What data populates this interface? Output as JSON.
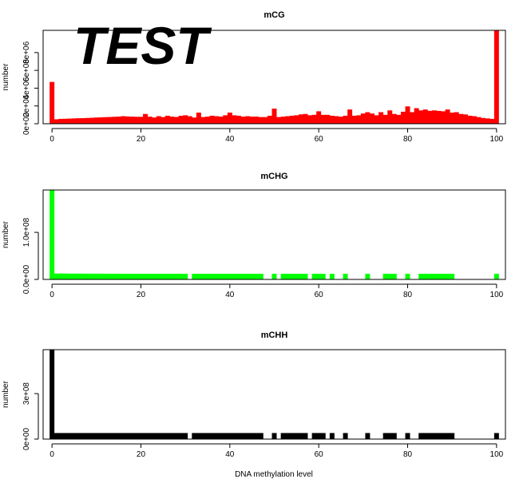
{
  "watermark": "TEST",
  "xlabel": "DNA methylation level",
  "colors": {
    "mCG": "#ff0000",
    "mCHG": "#00ff00",
    "mCHH": "#000000",
    "watermark": "#ec1c24"
  },
  "chart_data": [
    {
      "type": "bar",
      "title": "mCG",
      "ylabel": "number",
      "xlim": [
        -2,
        102
      ],
      "ylim": [
        0,
        10500000
      ],
      "x_ticks": [
        0,
        20,
        40,
        60,
        80,
        100
      ],
      "x_tick_labels": [
        "0",
        "20",
        "40",
        "60",
        "80",
        "100"
      ],
      "y_ticks": [
        0,
        2000000,
        4000000,
        6000000,
        8000000
      ],
      "y_tick_labels": [
        "0e+00",
        "2e+06",
        "4e+06",
        "6e+06",
        "8e+06"
      ],
      "x": [
        0,
        1,
        2,
        3,
        4,
        5,
        6,
        7,
        8,
        9,
        10,
        11,
        12,
        13,
        14,
        15,
        16,
        17,
        18,
        19,
        20,
        21,
        22,
        23,
        24,
        25,
        26,
        27,
        28,
        29,
        30,
        31,
        32,
        33,
        34,
        35,
        36,
        37,
        38,
        39,
        40,
        41,
        42,
        43,
        44,
        45,
        46,
        47,
        48,
        49,
        50,
        51,
        52,
        53,
        54,
        55,
        56,
        57,
        58,
        59,
        60,
        61,
        62,
        63,
        64,
        65,
        66,
        67,
        68,
        69,
        70,
        71,
        72,
        73,
        74,
        75,
        76,
        77,
        78,
        79,
        80,
        81,
        82,
        83,
        84,
        85,
        86,
        87,
        88,
        89,
        90,
        91,
        92,
        93,
        94,
        95,
        96,
        97,
        98,
        99,
        100
      ],
      "values": [
        4700000,
        500000,
        550000,
        560000,
        580000,
        600000,
        620000,
        630000,
        650000,
        670000,
        700000,
        720000,
        740000,
        760000,
        780000,
        800000,
        850000,
        820000,
        800000,
        780000,
        780000,
        1100000,
        800000,
        700000,
        850000,
        750000,
        900000,
        800000,
        760000,
        900000,
        950000,
        850000,
        700000,
        1250000,
        750000,
        800000,
        900000,
        850000,
        800000,
        950000,
        1250000,
        950000,
        900000,
        800000,
        850000,
        800000,
        800000,
        750000,
        750000,
        900000,
        1700000,
        750000,
        800000,
        850000,
        900000,
        950000,
        1050000,
        1100000,
        950000,
        1000000,
        1400000,
        1000000,
        1000000,
        900000,
        850000,
        800000,
        900000,
        1600000,
        900000,
        950000,
        1150000,
        1300000,
        1150000,
        950000,
        1300000,
        1000000,
        1500000,
        1100000,
        1000000,
        1350000,
        1950000,
        1300000,
        1750000,
        1500000,
        1600000,
        1450000,
        1500000,
        1450000,
        1400000,
        1600000,
        1250000,
        1300000,
        1100000,
        1050000,
        900000,
        850000,
        750000,
        650000,
        600000,
        550000,
        10500000
      ]
    },
    {
      "type": "bar",
      "title": "mCHG",
      "ylabel": "number",
      "xlim": [
        -2,
        102
      ],
      "ylim": [
        0,
        190000000
      ],
      "x_ticks": [
        0,
        20,
        40,
        60,
        80,
        100
      ],
      "x_tick_labels": [
        "0",
        "20",
        "40",
        "60",
        "80",
        "100"
      ],
      "y_ticks": [
        0,
        100000000
      ],
      "y_tick_labels": [
        "0.0e+00",
        "1.0e+08"
      ],
      "x": [
        0,
        1,
        2,
        3,
        4,
        5,
        6,
        7,
        8,
        9,
        10,
        11,
        12,
        13,
        14,
        15,
        16,
        17,
        18,
        19,
        20,
        21,
        22,
        23,
        24,
        25,
        26,
        27,
        28,
        29,
        30,
        32,
        33,
        34,
        35,
        36,
        37,
        38,
        39,
        40,
        41,
        42,
        43,
        44,
        45,
        46,
        47,
        50,
        52,
        53,
        54,
        55,
        56,
        57,
        59,
        60,
        61,
        63,
        66,
        71,
        75,
        76,
        77,
        80,
        83,
        84,
        85,
        86,
        87,
        88,
        89,
        90,
        100
      ],
      "values": [
        190000000,
        12500000,
        12500000,
        12500000,
        12300000,
        12300000,
        12300000,
        12300000,
        12200000,
        12200000,
        12200000,
        12200000,
        12100000,
        12100000,
        12100000,
        12100000,
        12000000,
        12000000,
        12000000,
        12000000,
        12000000,
        12000000,
        12000000,
        12000000,
        12000000,
        12000000,
        12000000,
        12000000,
        12000000,
        12000000,
        12000000,
        12000000,
        12000000,
        12000000,
        12000000,
        12000000,
        12000000,
        12000000,
        12000000,
        12000000,
        12000000,
        12000000,
        12000000,
        12000000,
        12000000,
        12000000,
        12000000,
        12000000,
        12000000,
        12000000,
        12000000,
        12000000,
        12000000,
        12000000,
        12000000,
        12000000,
        12000000,
        12000000,
        12000000,
        12000000,
        12000000,
        12000000,
        12000000,
        12000000,
        12000000,
        12000000,
        12000000,
        12000000,
        12000000,
        12000000,
        12000000,
        12000000,
        12000000
      ]
    },
    {
      "type": "bar",
      "title": "mCHH",
      "ylabel": "number",
      "xlim": [
        -2,
        102
      ],
      "ylim": [
        0,
        590000000
      ],
      "x_ticks": [
        0,
        20,
        40,
        60,
        80,
        100
      ],
      "x_tick_labels": [
        "0",
        "20",
        "40",
        "60",
        "80",
        "100"
      ],
      "y_ticks": [
        0,
        300000000
      ],
      "y_tick_labels": [
        "0e+00",
        "3e+08"
      ],
      "x": [
        0,
        1,
        2,
        3,
        4,
        5,
        6,
        7,
        8,
        9,
        10,
        11,
        12,
        13,
        14,
        15,
        16,
        17,
        18,
        19,
        20,
        21,
        22,
        23,
        24,
        25,
        26,
        27,
        28,
        29,
        30,
        32,
        33,
        34,
        35,
        36,
        37,
        38,
        39,
        40,
        41,
        42,
        43,
        44,
        45,
        46,
        47,
        50,
        52,
        53,
        54,
        55,
        56,
        57,
        59,
        60,
        61,
        63,
        66,
        71,
        75,
        76,
        77,
        80,
        83,
        84,
        85,
        86,
        87,
        88,
        89,
        90,
        100
      ],
      "values": [
        590000000,
        40000000,
        40000000,
        40000000,
        40000000,
        40000000,
        40000000,
        40000000,
        40000000,
        40000000,
        40000000,
        40000000,
        40000000,
        40000000,
        40000000,
        40000000,
        40000000,
        40000000,
        40000000,
        40000000,
        40000000,
        40000000,
        40000000,
        40000000,
        40000000,
        40000000,
        40000000,
        40000000,
        40000000,
        40000000,
        40000000,
        40000000,
        40000000,
        40000000,
        40000000,
        40000000,
        40000000,
        40000000,
        40000000,
        40000000,
        40000000,
        40000000,
        40000000,
        40000000,
        40000000,
        40000000,
        40000000,
        40000000,
        40000000,
        40000000,
        40000000,
        40000000,
        40000000,
        40000000,
        40000000,
        40000000,
        40000000,
        40000000,
        40000000,
        40000000,
        40000000,
        40000000,
        40000000,
        40000000,
        40000000,
        40000000,
        40000000,
        40000000,
        40000000,
        40000000,
        40000000,
        40000000,
        40000000
      ]
    }
  ]
}
